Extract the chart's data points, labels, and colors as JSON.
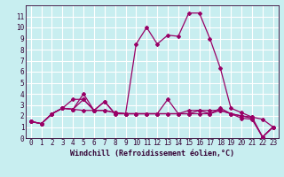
{
  "xlabel": "Windchill (Refroidissement éolien,°C)",
  "xlim": [
    -0.5,
    23.5
  ],
  "ylim": [
    0,
    12
  ],
  "xticks": [
    0,
    1,
    2,
    3,
    4,
    5,
    6,
    7,
    8,
    9,
    10,
    11,
    12,
    13,
    14,
    15,
    16,
    17,
    18,
    19,
    20,
    21,
    22,
    23
  ],
  "yticks": [
    0,
    1,
    2,
    3,
    4,
    5,
    6,
    7,
    8,
    9,
    10,
    11
  ],
  "background_color": "#c8eef0",
  "grid_color": "#ffffff",
  "line_color": "#990066",
  "series": [
    [
      1.5,
      1.3,
      2.2,
      2.7,
      2.6,
      3.5,
      2.5,
      3.3,
      2.2,
      2.2,
      8.5,
      10.0,
      8.5,
      9.3,
      9.2,
      11.3,
      11.3,
      9.0,
      6.3,
      2.7,
      2.3,
      1.9,
      1.7,
      1.0
    ],
    [
      1.5,
      1.3,
      2.2,
      2.7,
      3.5,
      3.5,
      2.5,
      2.5,
      2.3,
      2.2,
      2.2,
      2.2,
      2.2,
      2.2,
      2.2,
      2.2,
      2.2,
      2.2,
      2.7,
      2.2,
      1.8,
      1.7,
      0.1,
      1.0
    ],
    [
      1.5,
      1.3,
      2.2,
      2.7,
      2.6,
      2.5,
      2.5,
      2.5,
      2.3,
      2.2,
      2.2,
      2.2,
      2.2,
      2.2,
      2.2,
      2.5,
      2.5,
      2.5,
      2.5,
      2.2,
      2.0,
      1.9,
      0.1,
      1.0
    ],
    [
      1.5,
      1.3,
      2.2,
      2.7,
      2.6,
      4.0,
      2.5,
      3.3,
      2.2,
      2.2,
      2.2,
      2.2,
      2.2,
      3.5,
      2.2,
      2.2,
      2.5,
      2.2,
      2.5,
      2.2,
      2.0,
      1.8,
      0.1,
      1.0
    ]
  ],
  "tick_fontsize": 5.5,
  "xlabel_fontsize": 6.0
}
